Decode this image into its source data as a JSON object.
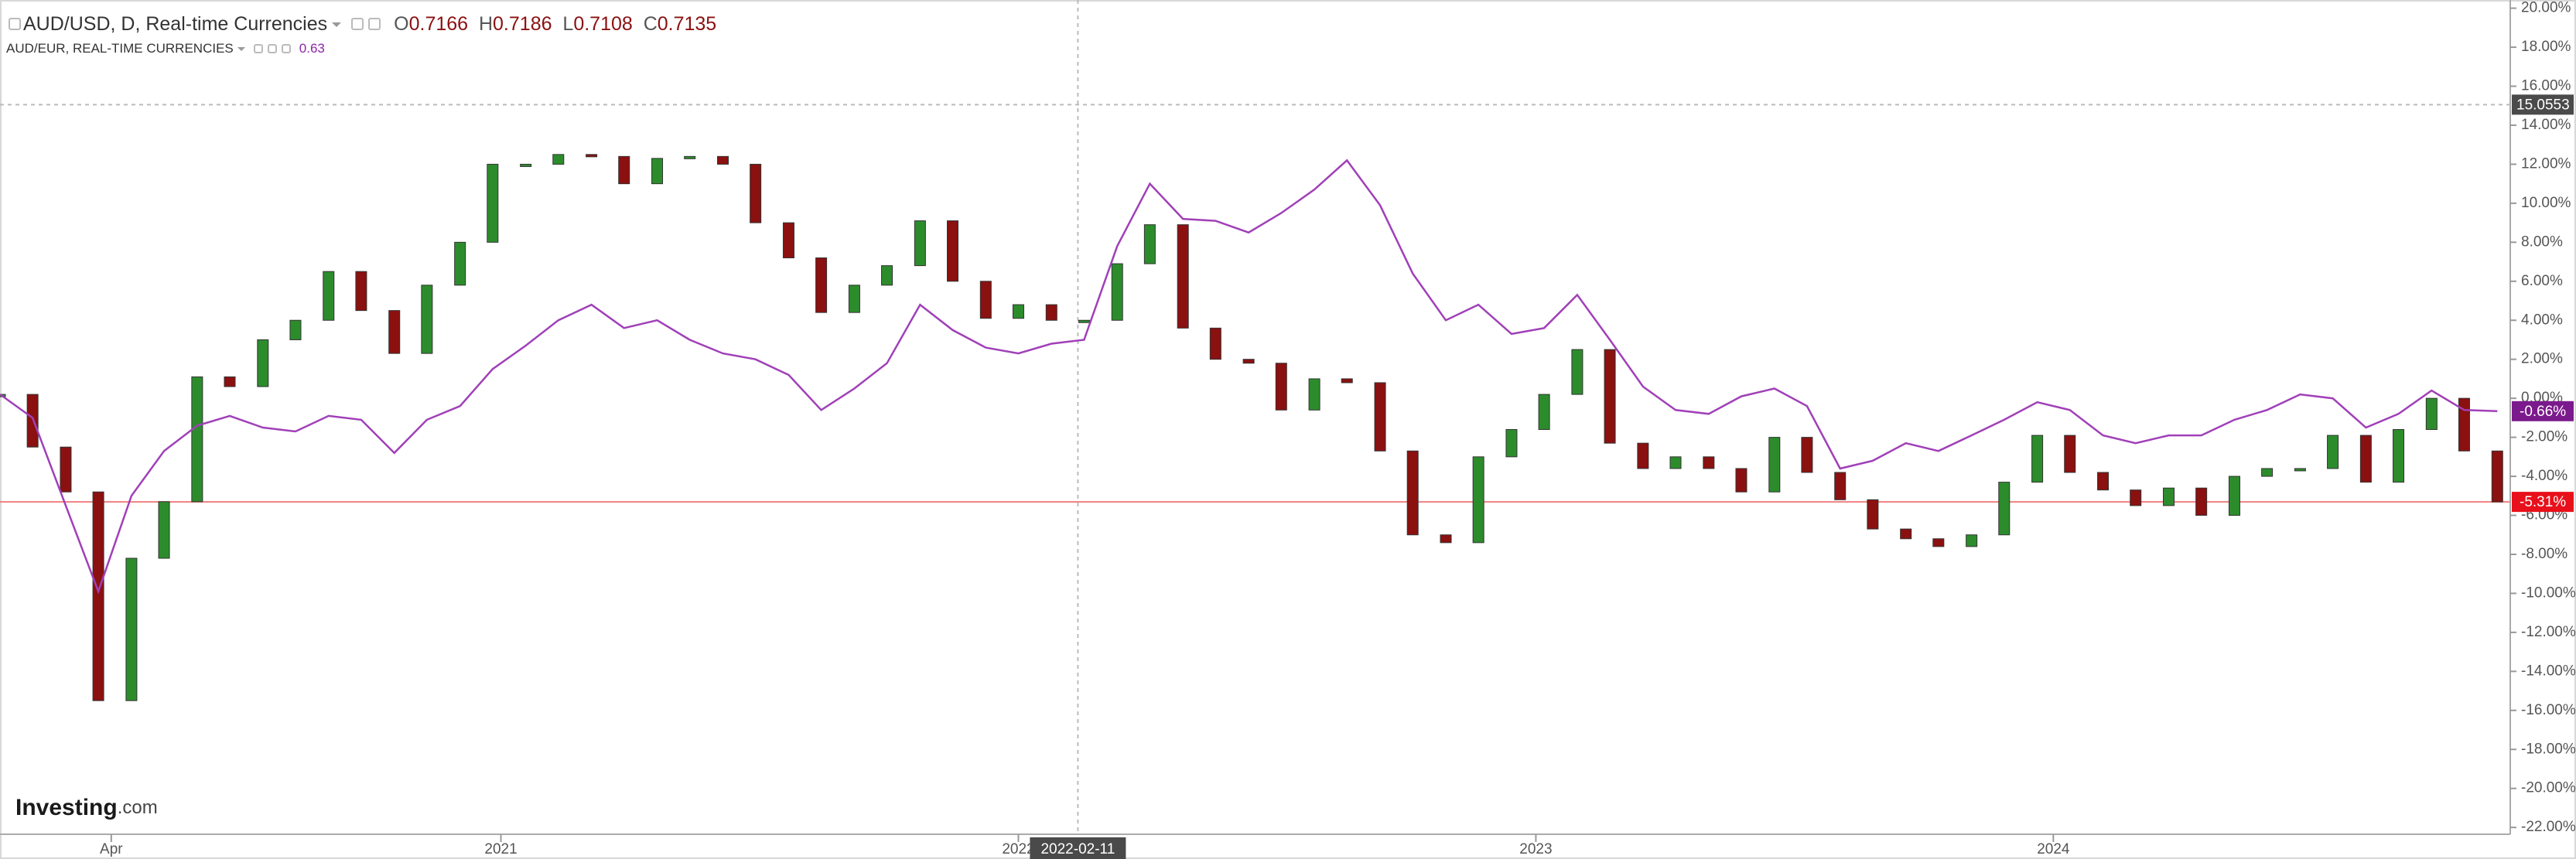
{
  "chart_data": {
    "type": "candlestick",
    "title": "AUD/USD, D, Real-time Currencies",
    "ohlc": [
      {
        "label": "O",
        "value": 0.7166
      },
      {
        "label": "H",
        "value": 0.7186
      },
      {
        "label": "L",
        "value": 0.7108
      },
      {
        "label": "C",
        "value": 0.7135
      }
    ],
    "compare": {
      "title": "AUD/EUR, REAL-TIME CURRENCIES",
      "value": 0.63
    },
    "x": [
      2020.032,
      2020.095,
      2020.159,
      2020.222,
      2020.286,
      2020.349,
      2020.413,
      2020.476,
      2020.54,
      2020.603,
      2020.667,
      2020.73,
      2020.794,
      2020.857,
      2020.921,
      2020.984,
      2021.048,
      2021.111,
      2021.175,
      2021.238,
      2021.302,
      2021.365,
      2021.429,
      2021.492,
      2021.556,
      2021.619,
      2021.683,
      2021.746,
      2021.81,
      2021.873,
      2021.937,
      2022.0,
      2022.064,
      2022.127,
      2022.191,
      2022.254,
      2022.318,
      2022.381,
      2022.445,
      2022.508,
      2022.572,
      2022.635,
      2022.699,
      2022.762,
      2022.826,
      2022.889,
      2022.953,
      2023.016,
      2023.08,
      2023.143,
      2023.207,
      2023.27,
      2023.334,
      2023.397,
      2023.461,
      2023.524,
      2023.588,
      2023.651,
      2023.715,
      2023.778,
      2023.842,
      2023.905,
      2023.969,
      2024.032,
      2024.096,
      2024.159,
      2024.223,
      2024.286,
      2024.35,
      2024.413,
      2024.477,
      2024.54,
      2024.604,
      2024.667,
      2024.731,
      2024.794,
      2024.858
    ],
    "series": [
      {
        "name": "AUD/USD",
        "color": "#8b1010",
        "up_color": "#2c8c2c",
        "style": "candles",
        "last_value_label": "-5.31%",
        "last_line_color": "#f08080",
        "tag_color": "#e8101a",
        "values": [
          0.2,
          -2.5,
          -4.8,
          -15.5,
          -8.2,
          -5.3,
          1.1,
          0.6,
          3.0,
          4.0,
          6.5,
          4.5,
          2.3,
          5.8,
          8.0,
          12.0,
          12.0,
          12.5,
          12.4,
          11.0,
          12.3,
          12.4,
          12.0,
          9.0,
          7.2,
          4.4,
          5.8,
          6.8,
          9.1,
          6.0,
          4.1,
          4.8,
          4.0,
          4.0,
          6.9,
          8.9,
          3.6,
          2.0,
          1.8,
          -0.6,
          1.0,
          0.8,
          -2.7,
          -7.0,
          -7.4,
          -3.0,
          -1.6,
          0.2,
          2.5,
          -2.3,
          -3.6,
          -3.0,
          -3.6,
          -4.8,
          -2.0,
          -3.8,
          -5.2,
          -6.7,
          -7.2,
          -7.6,
          -7.0,
          -4.3,
          -1.9,
          -3.8,
          -4.7,
          -5.5,
          -4.6,
          -6.0,
          -4.0,
          -3.6,
          -3.6,
          -1.9,
          -4.3,
          -1.6,
          0.0,
          -2.7,
          -5.31
        ]
      },
      {
        "name": "AUD/EUR",
        "color": "#a040b8",
        "style": "line",
        "last_value_label": "-0.66%",
        "tag_color": "#7b1a8c",
        "values": [
          0.2,
          -1.0,
          -5.5,
          -9.9,
          -5.0,
          -2.7,
          -1.4,
          -0.9,
          -1.5,
          -1.7,
          -0.9,
          -1.1,
          -2.8,
          -1.1,
          -0.4,
          1.5,
          2.7,
          4.0,
          4.8,
          3.6,
          4.0,
          3.0,
          2.3,
          2.0,
          1.2,
          -0.6,
          0.5,
          1.8,
          4.8,
          3.5,
          2.6,
          2.3,
          2.8,
          3.0,
          7.8,
          11.0,
          9.2,
          9.1,
          8.5,
          9.5,
          10.7,
          12.2,
          9.9,
          6.4,
          4.0,
          4.8,
          3.3,
          3.6,
          5.3,
          3.0,
          0.6,
          -0.6,
          -0.8,
          0.1,
          0.5,
          -0.4,
          -3.6,
          -3.2,
          -2.3,
          -2.7,
          -1.9,
          -1.1,
          -0.2,
          -0.6,
          -1.9,
          -2.3,
          -1.9,
          -1.9,
          -1.1,
          -0.6,
          0.2,
          0.0,
          -1.5,
          -0.8,
          0.4,
          -0.6,
          -0.66
        ]
      }
    ],
    "xlim": [
      2020.032,
      2024.883
    ],
    "ylim": [
      -22.35,
      20.42
    ],
    "xticks": [
      {
        "value": 2020.247,
        "label": "Apr"
      },
      2021,
      2022,
      2023,
      2024
    ],
    "yticks": [
      {
        "value": 20,
        "label": "20.00%"
      },
      {
        "value": 18,
        "label": "18.00%"
      },
      {
        "value": 16,
        "label": "16.00%"
      },
      {
        "value": 14,
        "label": "14.00%"
      },
      {
        "value": 12,
        "label": "12.00%"
      },
      {
        "value": 10,
        "label": "10.00%"
      },
      {
        "value": 8,
        "label": "8.00%"
      },
      {
        "value": 6,
        "label": "6.00%"
      },
      {
        "value": 4,
        "label": "4.00%"
      },
      {
        "value": 2,
        "label": "2.00%"
      },
      {
        "value": 0,
        "label": "0.00%"
      },
      {
        "value": -2,
        "label": "-2.00%"
      },
      {
        "value": -4,
        "label": "-4.00%"
      },
      {
        "value": -6,
        "label": "-6.00%"
      },
      {
        "value": -8,
        "label": "-8.00%"
      },
      {
        "value": -10,
        "label": "-10.00%"
      },
      {
        "value": -12,
        "label": "-12.00%"
      },
      {
        "value": -14,
        "label": "-14.00%"
      },
      {
        "value": -16,
        "label": "-16.00%"
      },
      {
        "value": -18,
        "label": "-18.00%"
      },
      {
        "value": -20,
        "label": "-20.00%"
      },
      {
        "value": -22,
        "label": "-22.00%"
      }
    ],
    "crosshair": {
      "x": {
        "value": 2022.115,
        "label": "2022-02-11"
      },
      "y": 15.0553
    },
    "logo": {
      "text": "Investing",
      "suffix": ".com"
    }
  }
}
